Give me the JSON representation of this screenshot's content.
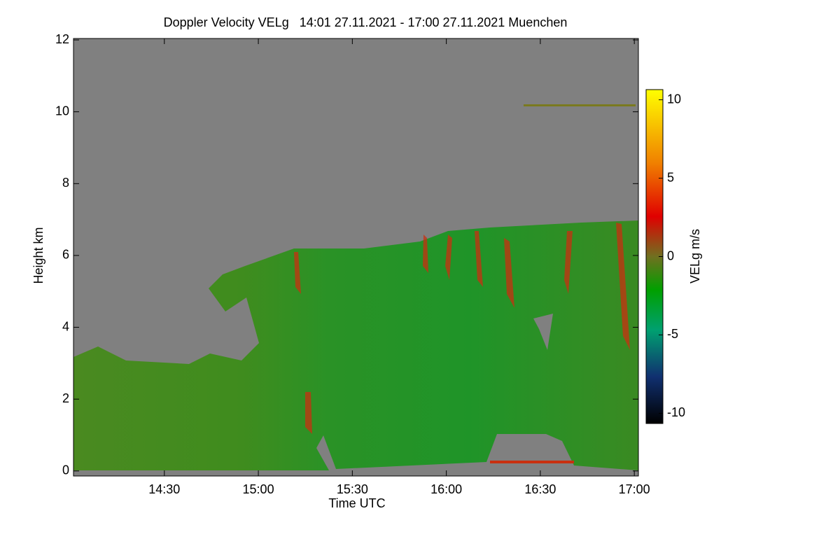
{
  "chart_data": {
    "type": "heatmap",
    "title": "Doppler Velocity VELg   14:01 27.11.2021 - 17:00 27.11.2021 Muenchen",
    "xlabel": "Time UTC",
    "ylabel": "Height km",
    "colorbar_label": "VELg m/s",
    "xlim": [
      14.0167,
      17.0217
    ],
    "xticks": [
      {
        "value": 14.5,
        "label": "14:30"
      },
      {
        "value": 15,
        "label": "15:00"
      },
      {
        "value": 15.5,
        "label": "15:30"
      },
      {
        "value": 16,
        "label": "16:00"
      },
      {
        "value": 16.5,
        "label": "16:30"
      },
      {
        "value": 17,
        "label": "17:00"
      }
    ],
    "ylim": [
      -0.14,
      12.04
    ],
    "yticks": [
      0,
      2,
      4,
      6,
      8,
      10,
      12
    ],
    "clim": [
      -10.65,
      10.65
    ],
    "cticks": [
      -10,
      -5,
      0,
      5,
      10
    ]
  }
}
